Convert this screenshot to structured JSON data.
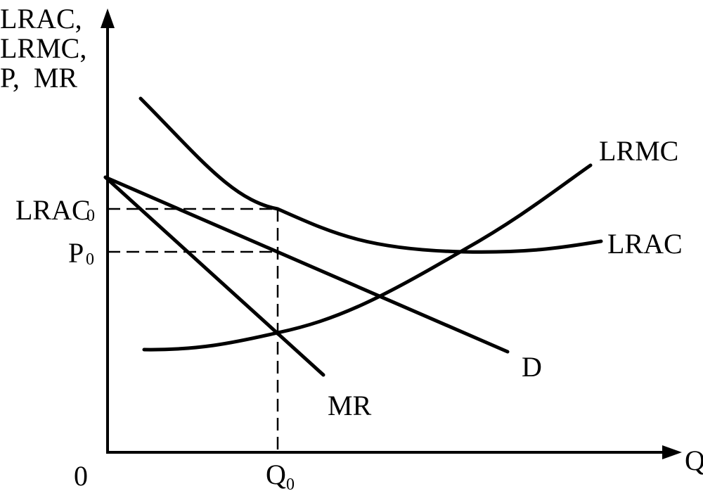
{
  "diagram": {
    "y_axis_label_lines": [
      "LRAC,",
      "LRMC,",
      "P,  MR"
    ],
    "x_axis_label": "Q",
    "origin_label": "0",
    "q0_label": {
      "main": "Q",
      "sub": "0"
    },
    "lrac0_label": {
      "main": "LRAC",
      "sub": "0"
    },
    "p0_label": {
      "main": "P",
      "sub": "0"
    },
    "curve_labels": {
      "lrmc": "LRMC",
      "lrac": "LRAC",
      "demand": "D",
      "mr": "MR"
    },
    "colors": {
      "line": "#000000",
      "background": "#ffffff"
    }
  }
}
